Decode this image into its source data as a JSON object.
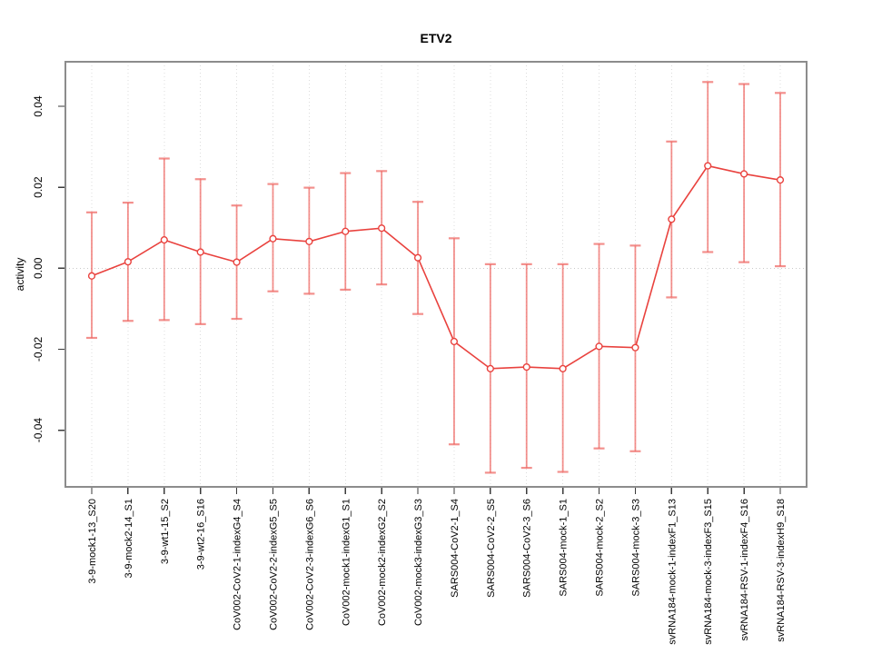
{
  "chart_data": {
    "type": "line",
    "title": "ETV2",
    "xlabel": "",
    "ylabel": "activity",
    "ylim": [
      -0.054,
      0.051
    ],
    "y_ticks": [
      0.04,
      0.02,
      0,
      -0.02,
      -0.04
    ],
    "y_tick_labels": [
      "0.04",
      "0.02",
      "0.00",
      "-0.02",
      "-0.04"
    ],
    "grid": "dotted vertical gridline at each category; dotted horizontal reference line at y=0",
    "legend": "none",
    "point_style": "open-circle",
    "categories": [
      "3-9-mock1-13_S20",
      "3-9-mock2-14_S1",
      "3-9-wt1-15_S2",
      "3-9-wt2-16_S16",
      "CoV002-CoV2-1-indexG4_S4",
      "CoV002-CoV2-2-indexG5_S5",
      "CoV002-CoV2-3-indexG6_S6",
      "CoV002-mock1-indexG1_S1",
      "CoV002-mock2-indexG2_S2",
      "CoV002-mock3-indexG3_S3",
      "SARS004-CoV2-1_S4",
      "SARS004-CoV2-2_S5",
      "SARS004-CoV2-3_S6",
      "SARS004-mock-1_S1",
      "SARS004-mock-2_S2",
      "SARS004-mock-3_S3",
      "svRNA184-mock-1-indexF1_S13",
      "svRNA184-mock-3-indexF3_S15",
      "svRNA184-RSV-1-indexF4_S16",
      "svRNA184-RSV-3-indexH9_S18"
    ],
    "series": [
      {
        "name": "activity",
        "values": [
          -0.0019,
          0.0016,
          0.007,
          0.004,
          0.0015,
          0.0073,
          0.0066,
          0.0091,
          0.0099,
          0.0026,
          -0.0181,
          -0.0248,
          -0.0244,
          -0.0248,
          -0.0193,
          -0.0196,
          0.0121,
          0.0253,
          0.0233,
          0.0218
        ],
        "err_low": [
          -0.0172,
          -0.013,
          -0.0128,
          -0.0138,
          -0.0125,
          -0.0057,
          -0.0063,
          -0.0053,
          -0.004,
          -0.0113,
          -0.0435,
          -0.0505,
          -0.0493,
          -0.0503,
          -0.0445,
          -0.0452,
          -0.0072,
          0.004,
          0.0015,
          0.0005
        ],
        "err_high": [
          0.0138,
          0.0162,
          0.0271,
          0.022,
          0.0155,
          0.0208,
          0.0199,
          0.0235,
          0.024,
          0.0164,
          0.0074,
          0.001,
          0.001,
          0.001,
          0.006,
          0.0056,
          0.0313,
          0.046,
          0.0455,
          0.0433
        ]
      }
    ],
    "colors": {
      "series": "#e9423e",
      "error_bar": "#ef6561",
      "frame": "#8c8c8c",
      "tick": "#3a3a3a",
      "grid": "#dcdcdc",
      "zero_line": "#c9c9c9",
      "text": "#000000",
      "background": "#ffffff"
    }
  }
}
